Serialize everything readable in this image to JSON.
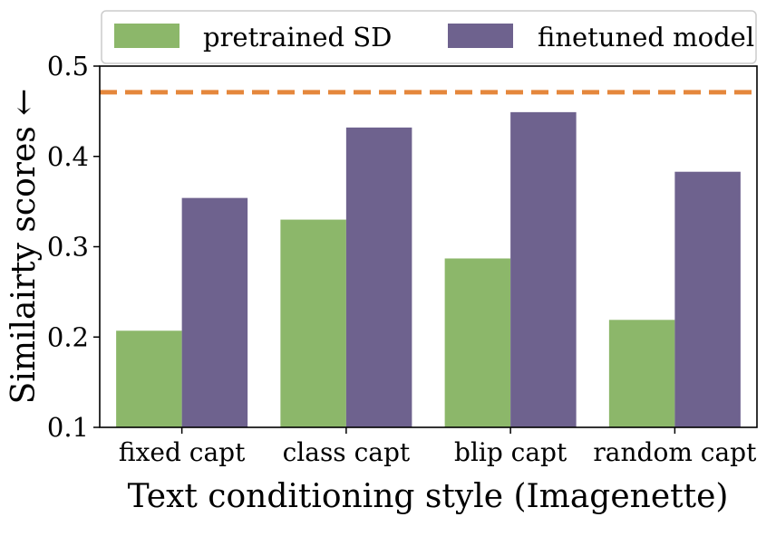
{
  "chart_data": {
    "type": "bar",
    "title": "",
    "xlabel": "Text conditioning style (Imagenette)",
    "ylabel": "Similairty scores ←",
    "categories": [
      "fixed capt",
      "class capt",
      "blip capt",
      "random capt"
    ],
    "series": [
      {
        "name": "pretrained SD",
        "color": "#8cb76a",
        "values": [
          0.207,
          0.33,
          0.287,
          0.219
        ]
      },
      {
        "name": "finetuned model",
        "color": "#6e628e",
        "values": [
          0.354,
          0.432,
          0.449,
          0.383
        ]
      }
    ],
    "reference_line": {
      "value": 0.471,
      "color": "#e5873c",
      "style": "dashed"
    },
    "ylim": [
      0.1,
      0.5
    ],
    "yticks": [
      "0.1",
      "0.2",
      "0.3",
      "0.4",
      "0.5"
    ],
    "ytick_values": [
      0.1,
      0.2,
      0.3,
      0.4,
      0.5
    ],
    "legend_position": "top",
    "grid": false
  }
}
